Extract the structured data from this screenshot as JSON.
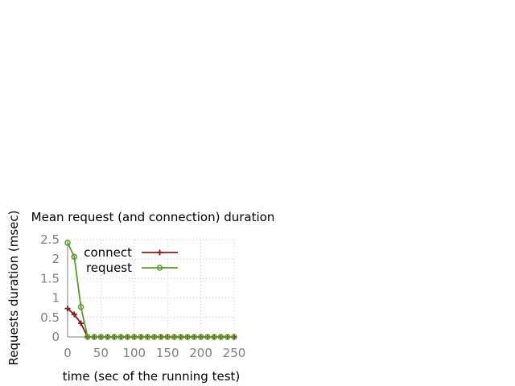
{
  "chart_data": {
    "type": "line",
    "title": "Mean request (and connection) duration",
    "xlabel": "time (sec of the running test)",
    "ylabel": "Requests duration (msec)",
    "xlim": [
      0,
      250
    ],
    "ylim": [
      0,
      2.5
    ],
    "xticks": [
      0,
      50,
      100,
      150,
      200,
      250
    ],
    "yticks": [
      0,
      0.5,
      1,
      1.5,
      2,
      2.5
    ],
    "xtick_labels": [
      "0",
      "50",
      "100",
      "150",
      "200",
      "250"
    ],
    "ytick_labels": [
      "0",
      "0.5",
      "1",
      "1.5",
      "2",
      "2.5"
    ],
    "grid": true,
    "legend_position": "top-right",
    "x": [
      0,
      10,
      20,
      30,
      40,
      50,
      60,
      70,
      80,
      90,
      100,
      110,
      120,
      130,
      140,
      150,
      160,
      170,
      180,
      190,
      200,
      210,
      220,
      230,
      240,
      250
    ],
    "series": [
      {
        "name": "connect",
        "color": "#8b1a1a",
        "marker": "plus",
        "values": [
          0.73,
          0.58,
          0.35,
          0,
          0,
          0,
          0,
          0,
          0,
          0,
          0,
          0,
          0,
          0,
          0,
          0,
          0,
          0,
          0,
          0,
          0,
          0,
          0,
          0,
          0,
          0
        ]
      },
      {
        "name": "request",
        "color": "#5a9a2a",
        "marker": "circle",
        "values": [
          2.42,
          2.06,
          0.77,
          0,
          0,
          0,
          0,
          0,
          0,
          0,
          0,
          0,
          0,
          0,
          0,
          0,
          0,
          0,
          0,
          0,
          0,
          0,
          0,
          0,
          0,
          0
        ]
      }
    ]
  }
}
